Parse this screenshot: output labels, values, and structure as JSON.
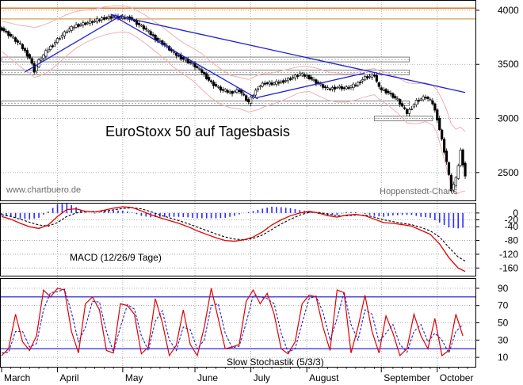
{
  "colors": {
    "price_candles": "#000000",
    "bollinger_bands": "#f0b0b0",
    "trendline": "#1f1fd6",
    "resistance_top": "#e2741c",
    "resistance_second": "#d8b070",
    "support_boxes": "#808080",
    "macd_line": "#e00000",
    "macd_signal": "#000000",
    "macd_histogram": "#2a2aff",
    "stoch_k": "#e00000",
    "stoch_d": "#2020d0",
    "stoch_levels": "#1010d0",
    "grid": "#9a9a9a"
  },
  "watermarks": {
    "left": "www.chartbuero.de",
    "right": "Hoppenstedt-Charts"
  },
  "chart_data": [
    {
      "type": "line",
      "title": "EuroStoxx 50 auf Tagesbasis",
      "panel": "price",
      "style": "candlestick with Bollinger bands",
      "ylim": [
        2250,
        4080
      ],
      "y_ticks": [
        "2500",
        "3000",
        "3500",
        "4000"
      ],
      "x_month_labels": [
        "March",
        "April",
        "May",
        "June",
        "July",
        "August",
        "September",
        "October"
      ],
      "x_month_index": [
        0,
        24,
        52,
        83,
        107,
        131,
        163,
        187
      ],
      "x_range_index": [
        0,
        200
      ],
      "series": [
        {
          "name": "",
          "x": [
            0,
            4,
            8,
            12,
            14,
            16,
            20,
            24,
            28,
            32,
            36,
            40,
            44,
            48,
            52,
            55,
            58,
            62,
            66,
            70,
            74,
            78,
            82,
            86,
            90,
            94,
            98,
            102,
            106,
            110,
            113,
            116,
            120,
            124,
            128,
            132,
            136,
            140,
            144,
            148,
            152,
            156,
            160,
            162,
            166,
            170,
            174,
            178,
            182,
            185,
            187,
            189,
            191,
            193,
            195,
            197,
            199
          ],
          "values": [
            3830,
            3760,
            3680,
            3560,
            3440,
            3530,
            3640,
            3730,
            3810,
            3860,
            3880,
            3900,
            3930,
            3940,
            3930,
            3930,
            3880,
            3820,
            3740,
            3680,
            3600,
            3550,
            3500,
            3430,
            3330,
            3270,
            3240,
            3260,
            3150,
            3290,
            3330,
            3320,
            3340,
            3370,
            3410,
            3380,
            3320,
            3270,
            3290,
            3280,
            3310,
            3380,
            3400,
            3280,
            3240,
            3170,
            3050,
            3160,
            3200,
            3140,
            3000,
            2800,
            2600,
            2340,
            2440,
            2700,
            2470
          ]
        }
      ],
      "upper_band": [
        3900,
        3880,
        3860,
        3850,
        3840,
        3850,
        3880,
        3920,
        3960,
        3990,
        4000,
        4010,
        4030,
        4040,
        4040,
        4030,
        4000,
        3950,
        3890,
        3830,
        3760,
        3700,
        3650,
        3600,
        3520,
        3460,
        3400,
        3380,
        3360,
        3400,
        3420,
        3420,
        3440,
        3460,
        3480,
        3480,
        3460,
        3430,
        3420,
        3410,
        3420,
        3450,
        3460,
        3440,
        3420,
        3380,
        3330,
        3320,
        3330,
        3310,
        3260,
        3180,
        3080,
        2950,
        2900,
        2920,
        2880
      ],
      "lower_band": [
        3620,
        3550,
        3480,
        3420,
        3380,
        3390,
        3430,
        3500,
        3580,
        3650,
        3700,
        3740,
        3770,
        3790,
        3800,
        3790,
        3750,
        3690,
        3620,
        3550,
        3470,
        3410,
        3350,
        3270,
        3190,
        3130,
        3100,
        3090,
        3060,
        3080,
        3110,
        3130,
        3160,
        3200,
        3240,
        3250,
        3210,
        3170,
        3150,
        3150,
        3170,
        3200,
        3220,
        3180,
        3120,
        3050,
        2960,
        2950,
        2970,
        2940,
        2860,
        2700,
        2540,
        2380,
        2300,
        2320,
        2330
      ],
      "trendlines": [
        {
          "x": [
            10,
            52
          ],
          "y": [
            3430,
            3960
          ]
        },
        {
          "x": [
            47,
            199
          ],
          "y": [
            3960,
            3240
          ]
        },
        {
          "x": [
            47,
            110
          ],
          "y": [
            3960,
            3180
          ]
        },
        {
          "x": [
            109,
            156
          ],
          "y": [
            3190,
            3420
          ]
        }
      ],
      "horizontal_levels": [
        {
          "level": 4020,
          "style": "line",
          "color": "resistance_top"
        },
        {
          "level": 3920,
          "style": "line",
          "color": "resistance_second"
        },
        {
          "level": 3545,
          "style": "box",
          "x_range": [
            0,
            175
          ]
        },
        {
          "level": 3425,
          "style": "box",
          "x_range": [
            0,
            175
          ]
        },
        {
          "level": 3140,
          "style": "box",
          "x_range": [
            0,
            175
          ]
        },
        {
          "level": 3000,
          "style": "box",
          "x_range": [
            160,
            185
          ]
        }
      ]
    },
    {
      "type": "line",
      "title": "MACD (12/26/9 Tage)",
      "panel": "macd",
      "ylim": [
        -180,
        25
      ],
      "y_ticks": [
        "0",
        "-20",
        "-40",
        "-80",
        "-120",
        "-160"
      ],
      "y_tick_values": [
        0,
        -20,
        -40,
        -80,
        -120,
        -160
      ],
      "grid": true,
      "series": [
        {
          "name": "",
          "x": [
            0,
            4,
            8,
            12,
            16,
            20,
            24,
            28,
            32,
            36,
            40,
            44,
            48,
            52,
            56,
            60,
            64,
            68,
            72,
            76,
            80,
            84,
            88,
            92,
            96,
            100,
            104,
            108,
            112,
            116,
            120,
            124,
            128,
            132,
            136,
            140,
            144,
            148,
            152,
            156,
            160,
            164,
            168,
            172,
            176,
            180,
            184,
            188,
            192,
            196,
            199
          ],
          "values": [
            -10,
            -18,
            -30,
            -40,
            -45,
            -35,
            -10,
            10,
            12,
            5,
            3,
            8,
            14,
            18,
            16,
            6,
            -5,
            -14,
            -22,
            -30,
            -40,
            -52,
            -62,
            -72,
            -80,
            -82,
            -78,
            -70,
            -55,
            -35,
            -20,
            -8,
            0,
            5,
            0,
            -8,
            -12,
            -6,
            -4,
            -8,
            -18,
            -28,
            -30,
            -34,
            -38,
            -50,
            -62,
            -90,
            -130,
            -160,
            -170
          ]
        },
        {
          "name": "",
          "x": [
            0,
            4,
            8,
            12,
            16,
            20,
            24,
            28,
            32,
            36,
            40,
            44,
            48,
            52,
            56,
            60,
            64,
            68,
            72,
            76,
            80,
            84,
            88,
            92,
            96,
            100,
            104,
            108,
            112,
            116,
            120,
            124,
            128,
            132,
            136,
            140,
            144,
            148,
            152,
            156,
            160,
            164,
            168,
            172,
            176,
            180,
            184,
            188,
            192,
            196,
            199
          ],
          "values": [
            -5,
            -10,
            -18,
            -27,
            -35,
            -38,
            -28,
            -10,
            0,
            4,
            4,
            5,
            9,
            13,
            15,
            12,
            4,
            -6,
            -14,
            -22,
            -31,
            -41,
            -51,
            -61,
            -70,
            -76,
            -78,
            -74,
            -64,
            -48,
            -32,
            -18,
            -6,
            2,
            2,
            -3,
            -8,
            -8,
            -6,
            -6,
            -12,
            -20,
            -25,
            -30,
            -34,
            -42,
            -52,
            -70,
            -100,
            -128,
            -140
          ]
        }
      ]
    },
    {
      "type": "line",
      "title": "Slow Stochastik (5/3/3)",
      "panel": "stochastic",
      "ylim": [
        0,
        100
      ],
      "y_ticks": [
        "10",
        "30",
        "50",
        "70",
        "90"
      ],
      "y_tick_values": [
        10,
        30,
        50,
        70,
        90
      ],
      "levels": [
        20,
        80
      ],
      "grid": true,
      "series": [
        {
          "name": "",
          "x": [
            0,
            3,
            6,
            9,
            12,
            15,
            18,
            21,
            24,
            27,
            30,
            33,
            36,
            39,
            42,
            45,
            48,
            51,
            54,
            57,
            60,
            63,
            66,
            69,
            72,
            75,
            78,
            81,
            84,
            87,
            90,
            93,
            96,
            99,
            102,
            105,
            108,
            111,
            114,
            117,
            120,
            123,
            126,
            129,
            132,
            135,
            138,
            141,
            144,
            147,
            150,
            153,
            156,
            159,
            162,
            165,
            168,
            171,
            174,
            177,
            180,
            183,
            186,
            189,
            192,
            195,
            198
          ],
          "values": [
            12,
            20,
            60,
            28,
            18,
            35,
            88,
            80,
            90,
            88,
            40,
            15,
            72,
            80,
            65,
            18,
            15,
            72,
            70,
            60,
            14,
            22,
            78,
            50,
            12,
            24,
            65,
            25,
            12,
            45,
            90,
            55,
            20,
            22,
            25,
            75,
            88,
            72,
            84,
            60,
            20,
            14,
            28,
            72,
            82,
            80,
            45,
            18,
            88,
            85,
            15,
            45,
            82,
            40,
            15,
            58,
            38,
            12,
            20,
            60,
            35,
            20,
            55,
            12,
            18,
            60,
            35
          ]
        },
        {
          "name": "",
          "x": [
            0,
            3,
            6,
            9,
            12,
            15,
            18,
            21,
            24,
            27,
            30,
            33,
            36,
            39,
            42,
            45,
            48,
            51,
            54,
            57,
            60,
            63,
            66,
            69,
            72,
            75,
            78,
            81,
            84,
            87,
            90,
            93,
            96,
            99,
            102,
            105,
            108,
            111,
            114,
            117,
            120,
            123,
            126,
            129,
            132,
            135,
            138,
            141,
            144,
            147,
            150,
            153,
            156,
            159,
            162,
            165,
            168,
            171,
            174,
            177,
            180,
            183,
            186,
            189,
            192,
            195,
            198
          ],
          "values": [
            15,
            16,
            40,
            40,
            22,
            26,
            65,
            85,
            86,
            89,
            62,
            28,
            45,
            75,
            74,
            40,
            16,
            45,
            71,
            66,
            35,
            18,
            52,
            64,
            30,
            18,
            45,
            42,
            20,
            30,
            70,
            72,
            38,
            21,
            23,
            50,
            82,
            80,
            78,
            72,
            38,
            16,
            20,
            50,
            78,
            81,
            62,
            30,
            55,
            86,
            48,
            30,
            65,
            60,
            28,
            38,
            48,
            25,
            16,
            40,
            48,
            28,
            38,
            30,
            15,
            40,
            48
          ]
        }
      ]
    }
  ]
}
